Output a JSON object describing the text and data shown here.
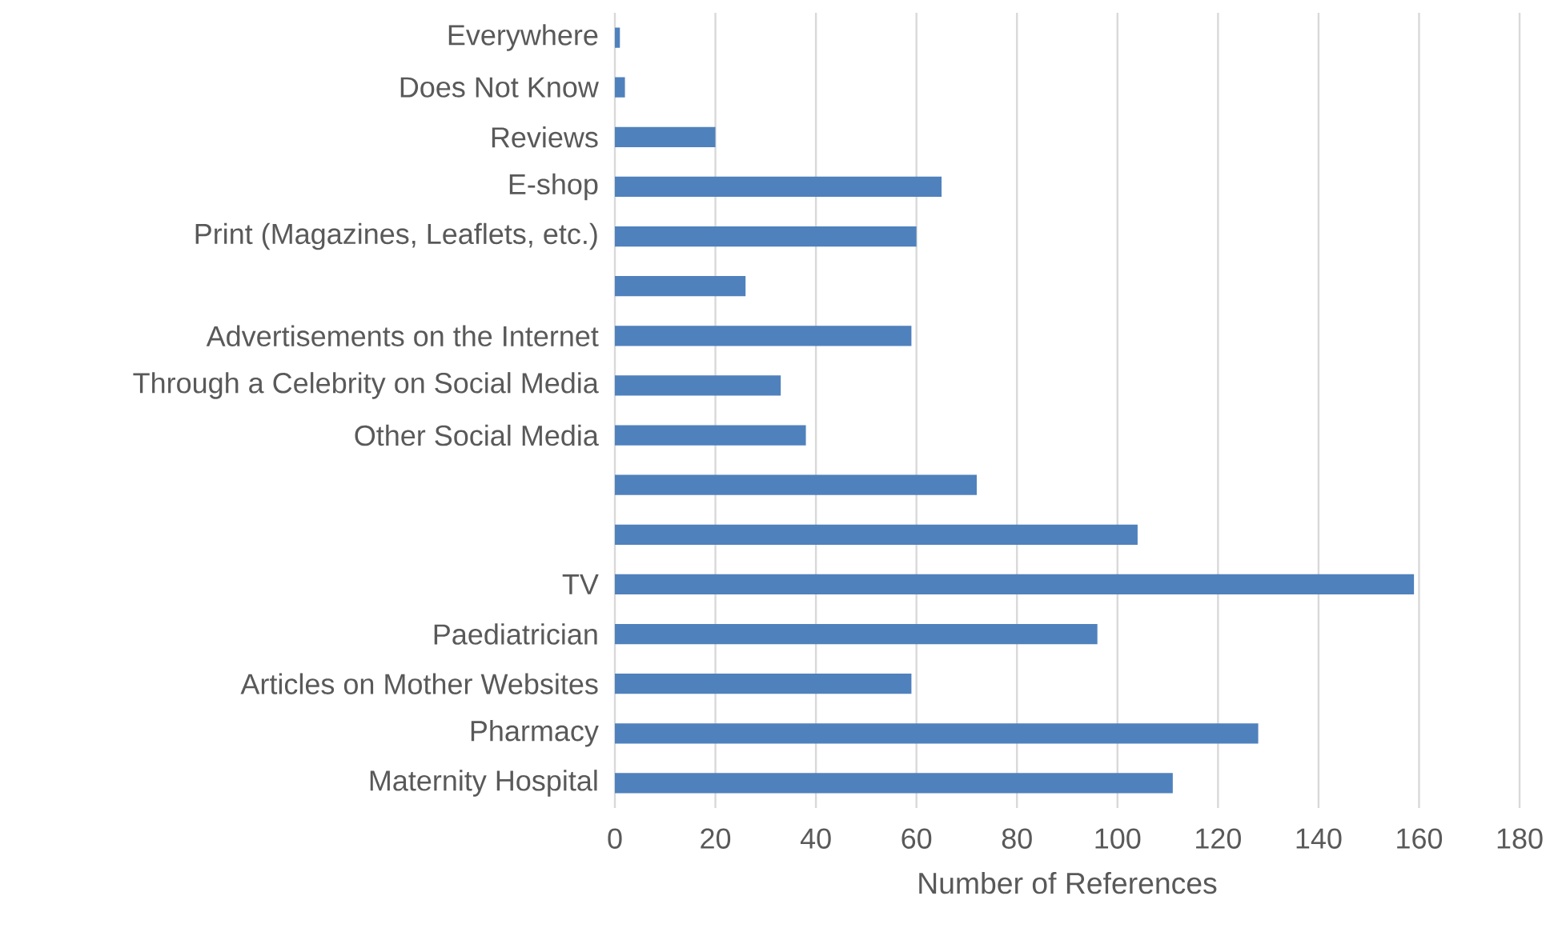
{
  "chart_data": {
    "type": "bar",
    "orientation": "horizontal",
    "xlabel": "Number of References",
    "categories": [
      "Everywhere",
      "Does Not Know",
      "Reviews",
      "E-shop",
      "Print (Magazines, Leaflets, etc.)",
      null,
      "Advertisements on the Internet",
      "Through a Celebrity on Social Media",
      "Other Social Media",
      null,
      null,
      "TV",
      "Paediatrician",
      "Articles on Mother Websites",
      "Pharmacy",
      "Maternity Hospital"
    ],
    "values": [
      1,
      2,
      20,
      65,
      60,
      26,
      59,
      33,
      38,
      72,
      104,
      159,
      96,
      59,
      128,
      111
    ],
    "color": "#4f81bd",
    "xlim": [
      0,
      180
    ],
    "xticks": [
      0,
      20,
      40,
      60,
      80,
      100,
      120,
      140,
      160,
      180
    ],
    "grid": "x"
  }
}
